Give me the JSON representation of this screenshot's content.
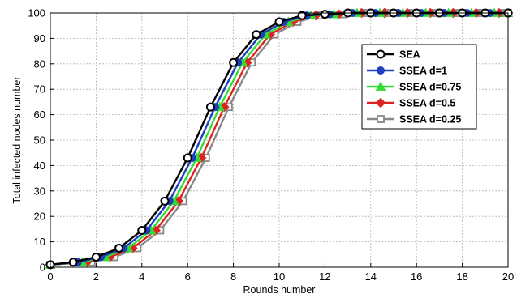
{
  "chart_data": {
    "type": "line",
    "title": "",
    "xlabel": "Rounds number",
    "ylabel": "Total infected nodes number",
    "xlim": [
      0,
      20
    ],
    "ylim": [
      0,
      100
    ],
    "xticks": [
      0,
      2,
      4,
      6,
      8,
      10,
      12,
      14,
      16,
      18,
      20
    ],
    "yticks": [
      0,
      10,
      20,
      30,
      40,
      50,
      60,
      70,
      80,
      90,
      100
    ],
    "grid": true,
    "legend_position": "right",
    "x": [
      0,
      1,
      2,
      3,
      4,
      5,
      6,
      7,
      8,
      9,
      10,
      11,
      12,
      13,
      14,
      15,
      16,
      17,
      18,
      19,
      20
    ],
    "series": [
      {
        "name": "SEA",
        "color": "#000000",
        "marker": "circle-open",
        "x": [
          0,
          1,
          2,
          3,
          4,
          5,
          6,
          7,
          8,
          9,
          10,
          11,
          12,
          13,
          14,
          15,
          16,
          17,
          18,
          19,
          20
        ],
        "values": [
          1,
          2,
          4,
          7.5,
          14.5,
          26,
          43,
          63,
          80.5,
          91.5,
          96.5,
          99,
          99.5,
          100,
          100,
          100,
          100,
          100,
          100,
          100,
          100
        ]
      },
      {
        "name": "SSEA d=1",
        "color": "#1f3fbf",
        "marker": "circle",
        "x": [
          0,
          1.2,
          2.2,
          3.2,
          4.2,
          5.2,
          6.2,
          7.2,
          8.2,
          9.2,
          10.2,
          11.2,
          12.2,
          13.2,
          14.2,
          15.2,
          16.2,
          17.2,
          18.2,
          19.2,
          20
        ],
        "values": [
          1,
          2,
          4,
          7.5,
          14.5,
          26,
          43,
          63,
          80.5,
          91.5,
          96.5,
          99,
          99.5,
          100,
          100,
          100,
          100,
          100,
          100,
          100,
          100
        ]
      },
      {
        "name": "SSEA d=0.75",
        "color": "#33dd33",
        "marker": "triangle",
        "x": [
          0,
          1.4,
          2.4,
          3.4,
          4.4,
          5.4,
          6.4,
          7.4,
          8.4,
          9.4,
          10.4,
          11.4,
          12.4,
          13.4,
          14.4,
          15.4,
          16.4,
          17.4,
          18.4,
          19.4,
          20
        ],
        "values": [
          1,
          2,
          4,
          7.5,
          14.5,
          26,
          43,
          63,
          80.5,
          91.5,
          96.5,
          99,
          99.5,
          100,
          100,
          100,
          100,
          100,
          100,
          100,
          100
        ]
      },
      {
        "name": "SSEA d=0.5",
        "color": "#dd2222",
        "marker": "diamond",
        "x": [
          0,
          1.6,
          2.6,
          3.6,
          4.6,
          5.6,
          6.6,
          7.6,
          8.6,
          9.6,
          10.6,
          11.6,
          12.6,
          13.6,
          14.6,
          15.6,
          16.6,
          17.6,
          18.6,
          19.6,
          20
        ],
        "values": [
          1,
          2,
          4,
          7.5,
          14.5,
          26,
          43,
          63,
          80.5,
          91.5,
          96.5,
          99,
          99.5,
          100,
          100,
          100,
          100,
          100,
          100,
          100,
          100
        ]
      },
      {
        "name": "SSEA d=0.25",
        "color": "#888888",
        "marker": "square",
        "x": [
          0,
          1.8,
          2.8,
          3.8,
          4.8,
          5.8,
          6.8,
          7.8,
          8.8,
          9.8,
          10.8,
          11.8,
          12.8,
          13.8,
          14.8,
          15.8,
          16.8,
          17.8,
          18.8,
          19.8,
          20
        ],
        "values": [
          1,
          2,
          4,
          7.5,
          14.5,
          26,
          43,
          63,
          80.5,
          91.5,
          96.5,
          99,
          99.5,
          100,
          100,
          100,
          100,
          100,
          100,
          100,
          100
        ]
      }
    ]
  }
}
